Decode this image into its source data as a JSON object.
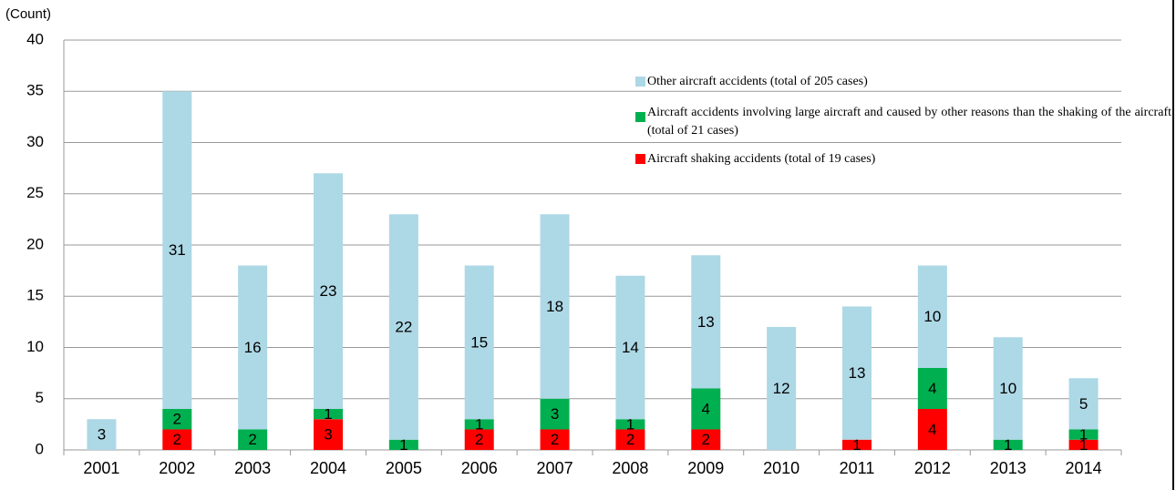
{
  "chart_data": {
    "type": "stacked_bar",
    "y_label": "(Count)",
    "categories": [
      "2001",
      "2002",
      "2003",
      "2004",
      "2005",
      "2006",
      "2007",
      "2008",
      "2009",
      "2010",
      "2011",
      "2012",
      "2013",
      "2014"
    ],
    "series": [
      {
        "name": "Aircraft shaking accidents (total of 19 cases)",
        "color": "#ff0000",
        "values": [
          0,
          2,
          0,
          3,
          0,
          2,
          2,
          2,
          2,
          0,
          1,
          4,
          0,
          1
        ]
      },
      {
        "name": "Aircraft accidents involving large aircraft and caused by other reasons than the shaking of the aircraft (total of 21 cases)",
        "color": "#00b050",
        "values": [
          0,
          2,
          2,
          1,
          1,
          1,
          3,
          1,
          4,
          0,
          0,
          4,
          1,
          1
        ]
      },
      {
        "name": "Other aircraft accidents (total of 205 cases)",
        "color": "#add8e6",
        "values": [
          3,
          31,
          16,
          23,
          22,
          15,
          18,
          14,
          13,
          12,
          13,
          10,
          10,
          5
        ]
      }
    ],
    "ylim": [
      0,
      40
    ],
    "yticks": [
      0,
      5,
      10,
      15,
      20,
      25,
      30,
      35,
      40
    ],
    "grid": true
  }
}
